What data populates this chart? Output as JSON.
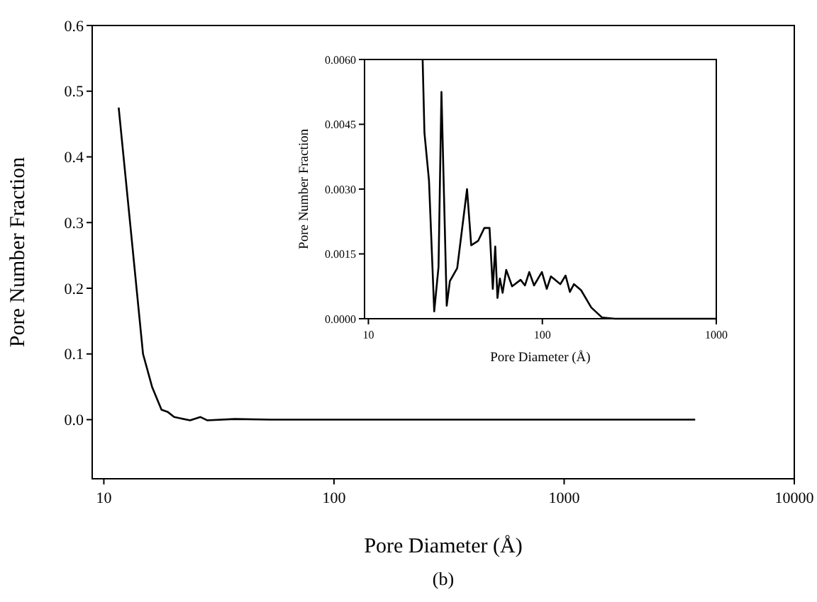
{
  "chart_data": [
    {
      "type": "line",
      "xlabel": "Pore Diameter (Å)",
      "ylabel": "Pore Number Fraction",
      "log": "x",
      "xlim": [
        8.9,
        10000
      ],
      "ylim": [
        -0.09,
        0.6
      ],
      "xticks": [
        10,
        100,
        1000,
        10000
      ],
      "yticks": [
        {
          "value": 0,
          "label": "0.0"
        },
        {
          "value": 0.1,
          "label": "0.1"
        },
        {
          "value": 0.2,
          "label": "0.2"
        },
        {
          "value": 0.3,
          "label": "0.3"
        },
        {
          "value": 0.4,
          "label": "0.4"
        },
        {
          "value": 0.5,
          "label": "0.5"
        },
        {
          "value": 0.6,
          "label": "0.6"
        }
      ],
      "annotations": [
        "(b)"
      ],
      "marker": "none",
      "line_style": "solid",
      "series": [
        {
          "color": "#000000",
          "x": [
            11.6,
            13.0,
            14.8,
            16.2,
            17.8,
            18.9,
            20.2,
            23.7,
            26.3,
            28.1,
            37,
            53,
            3710
          ],
          "values": [
            0.475,
            0.3,
            0.1,
            0.05,
            0.015,
            0.012,
            0.004,
            -0.001,
            0.004,
            -0.001,
            0.001,
            0,
            0
          ]
        }
      ]
    },
    {
      "type": "line",
      "xlabel": "Pore Diameter (Å)",
      "ylabel": "Pore Number Fraction",
      "log": "x",
      "xlim": [
        9.5,
        1000
      ],
      "ylim": [
        0,
        0.006
      ],
      "xticks": [
        10,
        100,
        1000
      ],
      "yticks": [
        {
          "value": 0,
          "label": "0.0000"
        },
        {
          "value": 0.0015,
          "label": "0.0015"
        },
        {
          "value": 0.003,
          "label": "0.0030"
        },
        {
          "value": 0.0045,
          "label": "0.0045"
        },
        {
          "value": 0.006,
          "label": "0.0060"
        }
      ],
      "marker": "none",
      "line_style": "solid",
      "series": [
        {
          "color": "#000000",
          "x": [
            20.5,
            21.0,
            22.3,
            23.9,
            25.3,
            26.3,
            28.2,
            29.4,
            32.4,
            36.9,
            39.0,
            42.7,
            46.4,
            49.7,
            51.9,
            53.6,
            55.2,
            57.0,
            59.1,
            62.0,
            67.0,
            75.0,
            79.4,
            84.1,
            89.6,
            99.4,
            106,
            112,
            127,
            136,
            144,
            152,
            167,
            191,
            220,
            261,
            990
          ],
          "values": [
            0.006,
            0.0043,
            0.0032,
            0.00017,
            0.0012,
            0.00525,
            0.0003,
            0.00087,
            0.00117,
            0.003,
            0.0017,
            0.0018,
            0.0021,
            0.0021,
            0.00069,
            0.00167,
            0.00048,
            0.00093,
            0.0006,
            0.00113,
            0.00075,
            0.0009,
            0.00077,
            0.00108,
            0.00077,
            0.00108,
            0.00069,
            0.00098,
            0.0008,
            0.001,
            0.00062,
            0.0008,
            0.00066,
            0.00026,
            3e-05,
            0,
            0
          ]
        }
      ]
    }
  ]
}
